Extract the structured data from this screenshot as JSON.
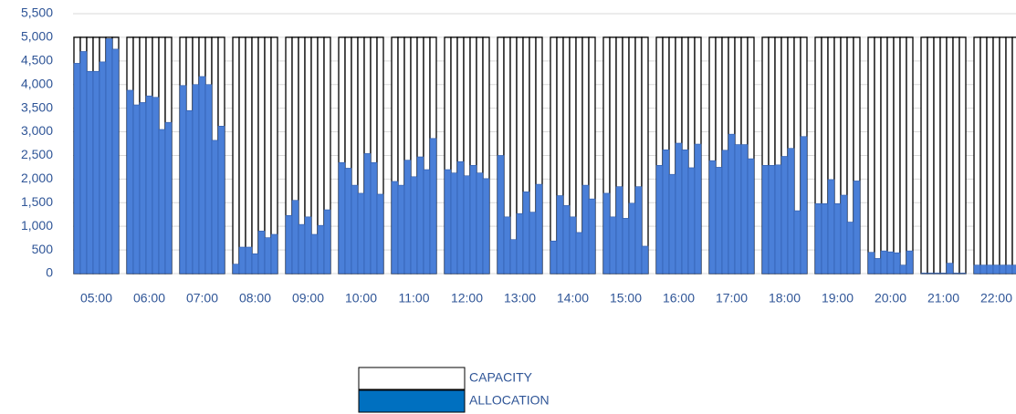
{
  "chart_data": {
    "type": "grouped-overlay-bar",
    "categories": [
      "05:00",
      "06:00",
      "07:00",
      "08:00",
      "09:00",
      "10:00",
      "11:00",
      "12:00",
      "13:00",
      "14:00",
      "15:00",
      "16:00",
      "17:00",
      "18:00",
      "19:00",
      "20:00",
      "21:00",
      "22:00"
    ],
    "series": [
      {
        "name": "CAPACITY",
        "color": "#ffffff",
        "values": [
          [
            5000,
            5000,
            5000,
            5000,
            5000,
            5000,
            5000
          ],
          [
            5000,
            5000,
            5000,
            5000,
            5000,
            5000,
            5000
          ],
          [
            5000,
            5000,
            5000,
            5000,
            5000,
            5000,
            5000
          ],
          [
            5000,
            5000,
            5000,
            5000,
            5000,
            5000,
            5000
          ],
          [
            5000,
            5000,
            5000,
            5000,
            5000,
            5000,
            5000
          ],
          [
            5000,
            5000,
            5000,
            5000,
            5000,
            5000,
            5000
          ],
          [
            5000,
            5000,
            5000,
            5000,
            5000,
            5000,
            5000
          ],
          [
            5000,
            5000,
            5000,
            5000,
            5000,
            5000,
            5000
          ],
          [
            5000,
            5000,
            5000,
            5000,
            5000,
            5000,
            5000
          ],
          [
            5000,
            5000,
            5000,
            5000,
            5000,
            5000,
            5000
          ],
          [
            5000,
            5000,
            5000,
            5000,
            5000,
            5000,
            5000
          ],
          [
            5000,
            5000,
            5000,
            5000,
            5000,
            5000,
            5000
          ],
          [
            5000,
            5000,
            5000,
            5000,
            5000,
            5000,
            5000
          ],
          [
            5000,
            5000,
            5000,
            5000,
            5000,
            5000,
            5000
          ],
          [
            5000,
            5000,
            5000,
            5000,
            5000,
            5000,
            5000
          ],
          [
            5000,
            5000,
            5000,
            5000,
            5000,
            5000,
            5000
          ],
          [
            5000,
            5000,
            5000,
            5000,
            5000,
            5000,
            5000
          ],
          [
            5000,
            5000,
            5000,
            5000,
            5000,
            5000,
            5000
          ]
        ]
      },
      {
        "name": "ALLOCATION",
        "color": "#4a7fd8",
        "values": [
          [
            4450,
            4700,
            4280,
            4280,
            4480,
            4970,
            4750
          ],
          [
            3880,
            3570,
            3620,
            3760,
            3730,
            3050,
            3200
          ],
          [
            3980,
            3450,
            4000,
            4170,
            4000,
            2820,
            3120
          ],
          [
            200,
            560,
            560,
            420,
            900,
            760,
            830
          ],
          [
            1230,
            1550,
            1040,
            1200,
            830,
            1020,
            1350
          ],
          [
            2350,
            2230,
            1870,
            1700,
            2540,
            2350,
            1680
          ],
          [
            1950,
            1870,
            2400,
            2050,
            2470,
            2200,
            2860
          ],
          [
            2200,
            2130,
            2370,
            2070,
            2290,
            2130,
            2010
          ],
          [
            2500,
            1200,
            720,
            1270,
            1730,
            1300,
            1890
          ],
          [
            690,
            1650,
            1440,
            1200,
            870,
            1870,
            1580
          ],
          [
            1700,
            1200,
            1840,
            1170,
            1490,
            1840,
            580
          ],
          [
            2290,
            2620,
            2100,
            2760,
            2620,
            2240,
            2740
          ],
          [
            2390,
            2250,
            2610,
            2950,
            2730,
            2730,
            2430
          ],
          [
            2290,
            2290,
            2300,
            2480,
            2650,
            1330,
            2900
          ],
          [
            1480,
            1480,
            1990,
            1480,
            1660,
            1090,
            1960
          ],
          [
            450,
            320,
            480,
            460,
            440,
            180,
            480
          ],
          [
            10,
            10,
            10,
            10,
            220,
            10,
            10
          ],
          [
            180,
            180,
            180,
            180,
            180,
            180,
            180
          ]
        ]
      }
    ],
    "ylim": [
      0,
      5500
    ],
    "yticks": [
      0,
      500,
      {
        "value": 1000,
        "label": "1,000"
      },
      {
        "value": 1500,
        "label": "1,500"
      },
      {
        "value": 2000,
        "label": "2,000"
      },
      {
        "value": 2500,
        "label": "2,500"
      },
      {
        "value": 3000,
        "label": "3,000"
      },
      {
        "value": 3500,
        "label": "3,500"
      },
      {
        "value": 4000,
        "label": "4,000"
      },
      {
        "value": 4500,
        "label": "4,500"
      },
      {
        "value": 5000,
        "label": "5,000"
      },
      {
        "value": 5500,
        "label": "5,500"
      }
    ],
    "grid": true
  }
}
